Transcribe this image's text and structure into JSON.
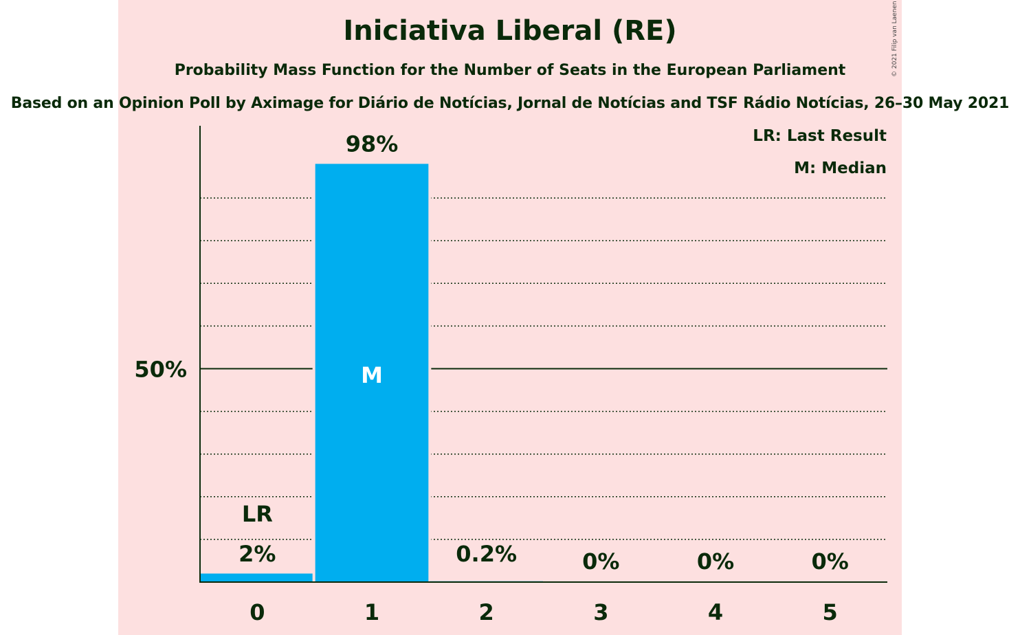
{
  "title": "Iniciativa Liberal (RE)",
  "subtitle": "Probability Mass Function for the Number of Seats in the European Parliament",
  "source": "Based on an Opinion Poll by Aximage for Diário de Notícias, Jornal de Notícias and TSF Rádio Notícias, 26–30 May 2021",
  "copyright": "© 2021 Filip van Laenen",
  "legend": {
    "last_result": "LR: Last Result",
    "median": "M: Median"
  },
  "colors": {
    "background": "#fde0e0",
    "bar": "#00aeef",
    "text": "#0a2a0a"
  },
  "chart_data": {
    "type": "bar",
    "categories": [
      "0",
      "1",
      "2",
      "3",
      "4",
      "5"
    ],
    "values": [
      2,
      98,
      0.2,
      0,
      0,
      0
    ],
    "value_labels": [
      "2%",
      "98%",
      "0.2%",
      "0%",
      "0%",
      "0%"
    ],
    "ylim": [
      0,
      100
    ],
    "y_tick_label": "50%",
    "y_tick_value": 50,
    "gridlines": [
      10,
      20,
      30,
      40,
      60,
      70,
      80,
      90
    ],
    "markers": {
      "last_result": {
        "category": "0",
        "label": "LR"
      },
      "median": {
        "category": "1",
        "label": "M"
      }
    },
    "legend_position": "top-right"
  }
}
